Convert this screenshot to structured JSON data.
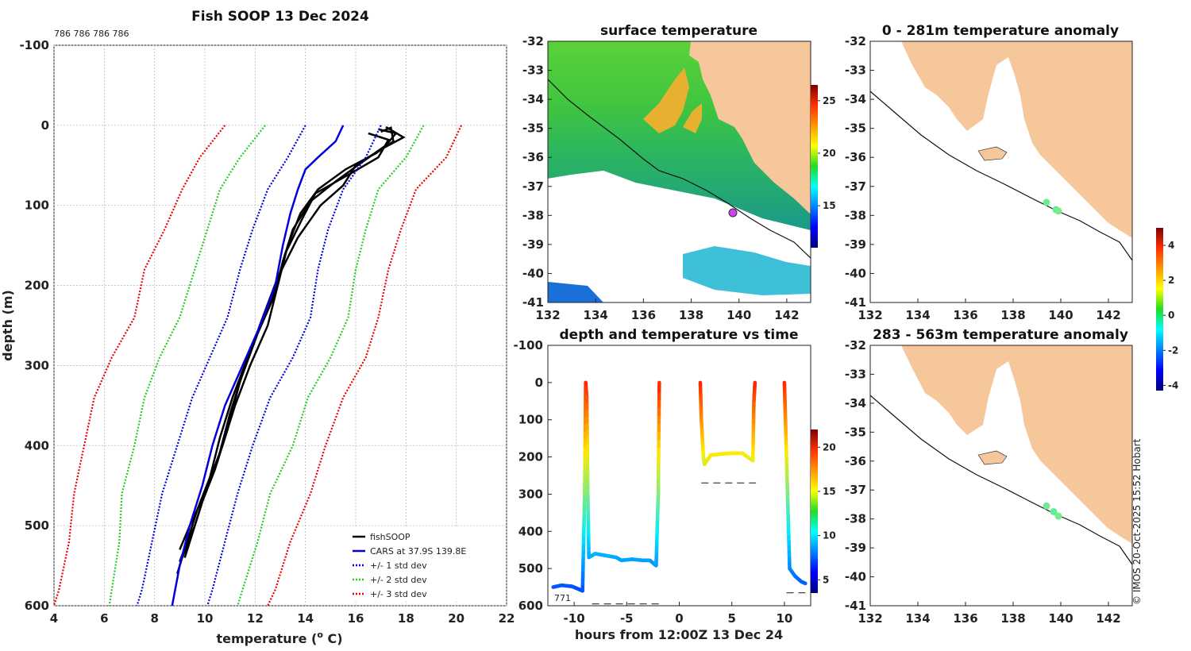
{
  "chart_data": [
    {
      "type": "line",
      "title": "Fish SOOP 13 Dec 2024",
      "subtitle": "786 786 786 786",
      "xlabel": "temperature (o C)",
      "ylabel": "depth (m)",
      "xlim": [
        4,
        22
      ],
      "ylim": [
        600,
        -100
      ],
      "xticks": [
        "4",
        "6",
        "8",
        "10",
        "12",
        "14",
        "16",
        "18",
        "20",
        "22"
      ],
      "yticks": [
        "-100",
        "0",
        "100",
        "200",
        "300",
        "400",
        "500",
        "600"
      ],
      "grid": true,
      "legend": [
        "fishSOOP",
        "CARS at 37.9S 139.8E",
        "+/- 1 std dev",
        "+/- 2 std dev",
        "+/- 3 std dev"
      ],
      "legend_position": "bottom-right",
      "series": [
        {
          "name": "fishSOOP",
          "color": "#000000",
          "profiles": [
            [
              [
                17.0,
                8
              ],
              [
                17.4,
                3
              ],
              [
                17.5,
                20
              ],
              [
                16.8,
                35
              ],
              [
                15.6,
                55
              ],
              [
                14.5,
                80
              ],
              [
                13.8,
                110
              ],
              [
                13.3,
                150
              ],
              [
                12.9,
                200
              ],
              [
                12.5,
                250
              ],
              [
                11.8,
                300
              ],
              [
                11.2,
                350
              ],
              [
                10.7,
                400
              ],
              [
                10.1,
                450
              ],
              [
                9.6,
                500
              ],
              [
                9.1,
                540
              ],
              [
                8.9,
                560
              ]
            ],
            [
              [
                16.9,
                5
              ],
              [
                17.6,
                10
              ],
              [
                17.2,
                25
              ],
              [
                16.3,
                45
              ],
              [
                15.2,
                70
              ],
              [
                14.2,
                95
              ],
              [
                13.5,
                130
              ],
              [
                13.1,
                170
              ],
              [
                12.8,
                210
              ],
              [
                12.1,
                260
              ],
              [
                11.4,
                320
              ],
              [
                10.9,
                380
              ],
              [
                10.4,
                430
              ],
              [
                9.9,
                470
              ],
              [
                9.5,
                510
              ],
              [
                9.2,
                540
              ]
            ],
            [
              [
                17.2,
                2
              ],
              [
                17.9,
                15
              ],
              [
                17.0,
                30
              ],
              [
                16.0,
                50
              ],
              [
                15.5,
                75
              ],
              [
                14.6,
                100
              ],
              [
                13.7,
                140
              ],
              [
                12.9,
                190
              ],
              [
                12.3,
                240
              ],
              [
                11.6,
                300
              ],
              [
                11.0,
                360
              ],
              [
                10.5,
                420
              ],
              [
                10.0,
                460
              ],
              [
                9.4,
                500
              ],
              [
                9.0,
                530
              ]
            ],
            [
              [
                16.5,
                10
              ],
              [
                17.3,
                18
              ],
              [
                16.9,
                40
              ],
              [
                15.8,
                60
              ],
              [
                14.4,
                85
              ],
              [
                13.9,
                115
              ],
              [
                13.2,
                160
              ],
              [
                12.8,
                205
              ],
              [
                12.4,
                235
              ],
              [
                11.7,
                290
              ],
              [
                11.1,
                340
              ],
              [
                10.6,
                390
              ],
              [
                10.2,
                440
              ],
              [
                9.7,
                480
              ],
              [
                9.3,
                520
              ],
              [
                9.0,
                545
              ]
            ]
          ]
        },
        {
          "name": "CARS at 37.9S 139.8E",
          "color": "#0000dd",
          "points": [
            [
              15.5,
              0
            ],
            [
              15.2,
              20
            ],
            [
              14.5,
              40
            ],
            [
              14.0,
              55
            ],
            [
              13.7,
              80
            ],
            [
              13.4,
              110
            ],
            [
              13.1,
              150
            ],
            [
              12.8,
              200
            ],
            [
              12.2,
              250
            ],
            [
              11.5,
              300
            ],
            [
              10.8,
              350
            ],
            [
              10.3,
              400
            ],
            [
              9.9,
              450
            ],
            [
              9.4,
              500
            ],
            [
              9.0,
              550
            ],
            [
              8.7,
              600
            ]
          ]
        },
        {
          "name": "+/- 1 std dev",
          "color": "#0000dd",
          "lower": [
            [
              14.0,
              0
            ],
            [
              13.3,
              40
            ],
            [
              12.5,
              80
            ],
            [
              11.9,
              130
            ],
            [
              11.4,
              180
            ],
            [
              10.9,
              240
            ],
            [
              10.2,
              290
            ],
            [
              9.5,
              340
            ],
            [
              8.9,
              400
            ],
            [
              8.3,
              460
            ],
            [
              7.9,
              520
            ],
            [
              7.5,
              580
            ],
            [
              7.3,
              600
            ]
          ],
          "upper": [
            [
              17.0,
              0
            ],
            [
              16.4,
              40
            ],
            [
              15.5,
              80
            ],
            [
              14.9,
              130
            ],
            [
              14.5,
              180
            ],
            [
              14.2,
              240
            ],
            [
              13.5,
              290
            ],
            [
              12.6,
              340
            ],
            [
              11.9,
              400
            ],
            [
              11.3,
              460
            ],
            [
              10.8,
              520
            ],
            [
              10.3,
              580
            ],
            [
              10.1,
              600
            ]
          ]
        },
        {
          "name": "+/- 2 std dev",
          "color": "#22cc22",
          "lower": [
            [
              12.4,
              0
            ],
            [
              11.4,
              40
            ],
            [
              10.6,
              80
            ],
            [
              10.1,
              130
            ],
            [
              9.6,
              180
            ],
            [
              9.0,
              240
            ],
            [
              8.2,
              290
            ],
            [
              7.6,
              340
            ],
            [
              7.2,
              400
            ],
            [
              6.7,
              460
            ],
            [
              6.6,
              520
            ],
            [
              6.3,
              580
            ],
            [
              6.2,
              600
            ]
          ],
          "upper": [
            [
              18.7,
              0
            ],
            [
              18.0,
              40
            ],
            [
              16.9,
              80
            ],
            [
              16.4,
              130
            ],
            [
              16.0,
              180
            ],
            [
              15.7,
              240
            ],
            [
              15.0,
              290
            ],
            [
              14.1,
              340
            ],
            [
              13.5,
              400
            ],
            [
              12.6,
              460
            ],
            [
              12.1,
              520
            ],
            [
              11.5,
              580
            ],
            [
              11.3,
              600
            ]
          ]
        },
        {
          "name": "+/- 3 std dev",
          "color": "#ee0000",
          "lower": [
            [
              10.8,
              0
            ],
            [
              9.8,
              40
            ],
            [
              9.1,
              80
            ],
            [
              8.4,
              130
            ],
            [
              7.6,
              180
            ],
            [
              7.2,
              240
            ],
            [
              6.3,
              290
            ],
            [
              5.6,
              340
            ],
            [
              5.2,
              400
            ],
            [
              4.8,
              460
            ],
            [
              4.6,
              520
            ],
            [
              4.2,
              580
            ],
            [
              4.0,
              600
            ]
          ],
          "upper": [
            [
              20.2,
              0
            ],
            [
              19.6,
              40
            ],
            [
              18.4,
              80
            ],
            [
              17.8,
              130
            ],
            [
              17.3,
              180
            ],
            [
              16.9,
              240
            ],
            [
              16.4,
              290
            ],
            [
              15.5,
              340
            ],
            [
              14.8,
              400
            ],
            [
              14.2,
              460
            ],
            [
              13.4,
              520
            ],
            [
              12.8,
              580
            ],
            [
              12.5,
              600
            ]
          ]
        }
      ]
    },
    {
      "type": "heatmap",
      "title": "surface temperature",
      "xlim": [
        132,
        143
      ],
      "ylim": [
        -41,
        -32
      ],
      "xticks": [
        "132",
        "134",
        "136",
        "138",
        "140",
        "142"
      ],
      "yticks": [
        "-32",
        "-33",
        "-34",
        "-35",
        "-36",
        "-37",
        "-38",
        "-39",
        "-40",
        "-41"
      ],
      "colorbar": {
        "min": 11,
        "max": 26.5,
        "ticks": [
          "15",
          "20",
          "25"
        ]
      },
      "vessel_position": [
        139.8,
        -37.9
      ]
    },
    {
      "type": "scatter",
      "title": "depth and temperature vs time",
      "xlabel": "hours from 12:00Z 13 Dec 24",
      "xlim": [
        -12.5,
        12.5
      ],
      "ylim": [
        600,
        -100
      ],
      "xticks": [
        "-10",
        "-5",
        "0",
        "5",
        "10"
      ],
      "yticks": [
        "-100",
        "0",
        "100",
        "200",
        "300",
        "400",
        "500",
        "600"
      ],
      "annotation": "771",
      "colorbar": {
        "min": 3.5,
        "max": 22,
        "ticks": [
          "5",
          "10",
          "15",
          "20"
        ]
      },
      "series": [
        {
          "name": "drop 1",
          "points": [
            [
              -12.0,
              550
            ],
            [
              -11.2,
              545
            ],
            [
              -10.2,
              548
            ],
            [
              -9.6,
              555
            ],
            [
              -9.2,
              560
            ],
            [
              -9.0,
              300
            ],
            [
              -8.9,
              0
            ],
            [
              -8.8,
              40
            ],
            [
              -8.7,
              300
            ],
            [
              -8.6,
              470
            ],
            [
              -8.0,
              460
            ],
            [
              -7.0,
              465
            ],
            [
              -6.0,
              470
            ],
            [
              -5.5,
              478
            ],
            [
              -4.5,
              475
            ],
            [
              -3.5,
              478
            ],
            [
              -2.8,
              478
            ],
            [
              -2.2,
              492
            ],
            [
              -2.0,
              300
            ],
            [
              -1.9,
              0
            ]
          ]
        },
        {
          "name": "drop 2",
          "points": [
            [
              2.0,
              0
            ],
            [
              2.1,
              100
            ],
            [
              2.3,
              200
            ],
            [
              2.4,
              220
            ],
            [
              3.0,
              195
            ],
            [
              4.0,
              192
            ],
            [
              5.0,
              190
            ],
            [
              6.0,
              190
            ],
            [
              7.0,
              210
            ],
            [
              7.1,
              50
            ],
            [
              7.2,
              0
            ]
          ]
        },
        {
          "name": "drop 3",
          "points": [
            [
              10.0,
              0
            ],
            [
              10.1,
              100
            ],
            [
              10.3,
              300
            ],
            [
              10.5,
              500
            ],
            [
              11.0,
              520
            ],
            [
              11.6,
              535
            ],
            [
              12.0,
              540
            ]
          ]
        }
      ],
      "bottom_depth_marks": [
        {
          "x": [
            -8.3,
            -1.6
          ],
          "depth": 595
        },
        {
          "x": [
            2.1,
            7.3
          ],
          "depth": 270
        },
        {
          "x": [
            10.2,
            12.0
          ],
          "depth": 565
        }
      ]
    },
    {
      "type": "scatter",
      "title": "0 - 281m temperature anomaly",
      "xlim": [
        132,
        143
      ],
      "ylim": [
        -41,
        -32
      ],
      "xticks": [
        "132",
        "134",
        "136",
        "138",
        "140",
        "142"
      ],
      "yticks": [
        "-32",
        "-33",
        "-34",
        "-35",
        "-36",
        "-37",
        "-38",
        "-39",
        "-40",
        "-41"
      ],
      "points": [
        [
          139.4,
          -37.55,
          0.2
        ],
        [
          139.8,
          -37.8,
          0.1
        ],
        [
          139.9,
          -37.85,
          0.3
        ]
      ]
    },
    {
      "type": "scatter",
      "title": "283 - 563m temperature anomaly",
      "xlim": [
        132,
        143
      ],
      "ylim": [
        -41,
        -32
      ],
      "xticks": [
        "132",
        "134",
        "136",
        "138",
        "140",
        "142"
      ],
      "yticks": [
        "-32",
        "-33",
        "-34",
        "-35",
        "-36",
        "-37",
        "-38",
        "-39",
        "-40",
        "-41"
      ],
      "points": [
        [
          139.4,
          -37.55,
          0.2
        ],
        [
          139.7,
          -37.75,
          0.1
        ],
        [
          139.9,
          -37.9,
          0.3
        ]
      ]
    },
    {
      "type": "colorbar",
      "name": "anomaly",
      "min": -4.3,
      "max": 5,
      "ticks": [
        "4",
        "2",
        "0",
        "-2",
        "-4"
      ]
    }
  ],
  "credit": "© IMOS 20-Oct-2025 15:52 Hobart"
}
